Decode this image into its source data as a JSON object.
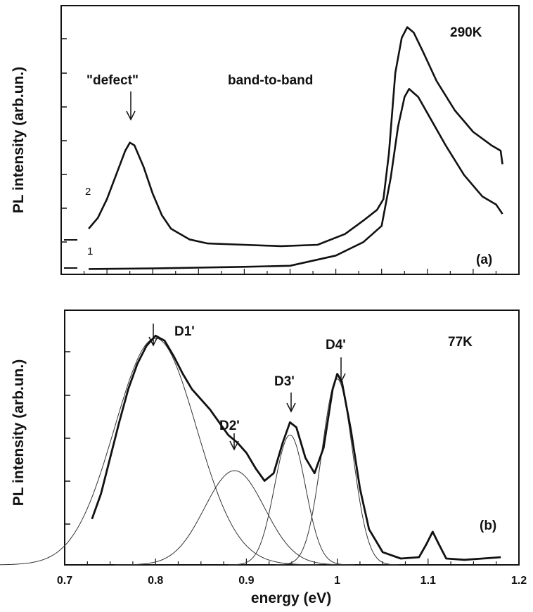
{
  "chart_data": [
    {
      "type": "line",
      "panel_label": "(a)",
      "temperature": "290K",
      "ylabel": "PL intensity (arb.un.)",
      "xlabel": "",
      "xlim": [
        0.7,
        1.2
      ],
      "ylim": [
        0,
        10
      ],
      "grid": false,
      "annotations": [
        {
          "text": "\"defect\"",
          "x": 0.775,
          "arrow": true
        },
        {
          "text": "band-to-band",
          "x": 0.91,
          "arrow": false
        }
      ],
      "series": [
        {
          "name": "2",
          "points": [
            [
              0.73,
              1.7
            ],
            [
              0.74,
              2.1
            ],
            [
              0.75,
              2.8
            ],
            [
              0.76,
              3.7
            ],
            [
              0.77,
              4.6
            ],
            [
              0.775,
              4.9
            ],
            [
              0.78,
              4.8
            ],
            [
              0.79,
              4.0
            ],
            [
              0.8,
              3.0
            ],
            [
              0.81,
              2.2
            ],
            [
              0.82,
              1.7
            ],
            [
              0.84,
              1.3
            ],
            [
              0.86,
              1.15
            ],
            [
              0.9,
              1.1
            ],
            [
              0.94,
              1.05
            ],
            [
              0.98,
              1.1
            ],
            [
              1.01,
              1.5
            ],
            [
              1.03,
              2.0
            ],
            [
              1.045,
              2.4
            ],
            [
              1.052,
              2.8
            ],
            [
              1.058,
              4.5
            ],
            [
              1.065,
              7.5
            ],
            [
              1.072,
              8.8
            ],
            [
              1.078,
              9.2
            ],
            [
              1.085,
              9.0
            ],
            [
              1.095,
              8.3
            ],
            [
              1.11,
              7.2
            ],
            [
              1.13,
              6.1
            ],
            [
              1.15,
              5.3
            ],
            [
              1.17,
              4.8
            ],
            [
              1.18,
              4.6
            ],
            [
              1.182,
              4.1
            ]
          ]
        },
        {
          "name": "1",
          "points": [
            [
              0.73,
              0.2
            ],
            [
              0.8,
              0.22
            ],
            [
              0.9,
              0.28
            ],
            [
              0.95,
              0.32
            ],
            [
              1.0,
              0.7
            ],
            [
              1.03,
              1.2
            ],
            [
              1.05,
              1.8
            ],
            [
              1.06,
              3.6
            ],
            [
              1.068,
              5.5
            ],
            [
              1.075,
              6.6
            ],
            [
              1.08,
              6.9
            ],
            [
              1.09,
              6.6
            ],
            [
              1.1,
              6.0
            ],
            [
              1.12,
              4.8
            ],
            [
              1.14,
              3.7
            ],
            [
              1.16,
              2.9
            ],
            [
              1.175,
              2.6
            ],
            [
              1.182,
              2.25
            ]
          ]
        }
      ]
    },
    {
      "type": "line",
      "panel_label": "(b)",
      "temperature": "77K",
      "ylabel": "PL intensity (arb.un.)",
      "xlabel": "energy (eV)",
      "xlim": [
        0.7,
        1.2
      ],
      "ylim": [
        0,
        10
      ],
      "grid": false,
      "x_ticks": [
        "0.7",
        "0.8",
        "0.9",
        "1",
        "1.1",
        "1.2"
      ],
      "peaks": [
        {
          "label": "D1'",
          "x": 0.8
        },
        {
          "label": "D2'",
          "x": 0.887
        },
        {
          "label": "D3'",
          "x": 0.948
        },
        {
          "label": "D4'",
          "x": 1.0
        }
      ],
      "measured": [
        [
          0.73,
          1.8
        ],
        [
          0.74,
          2.8
        ],
        [
          0.75,
          4.2
        ],
        [
          0.76,
          5.6
        ],
        [
          0.77,
          6.9
        ],
        [
          0.78,
          7.9
        ],
        [
          0.79,
          8.6
        ],
        [
          0.8,
          9.0
        ],
        [
          0.81,
          8.8
        ],
        [
          0.82,
          8.2
        ],
        [
          0.83,
          7.5
        ],
        [
          0.84,
          6.9
        ],
        [
          0.85,
          6.5
        ],
        [
          0.86,
          6.1
        ],
        [
          0.87,
          5.6
        ],
        [
          0.88,
          5.1
        ],
        [
          0.89,
          4.8
        ],
        [
          0.9,
          4.4
        ],
        [
          0.91,
          3.8
        ],
        [
          0.92,
          3.3
        ],
        [
          0.93,
          3.6
        ],
        [
          0.94,
          4.8
        ],
        [
          0.948,
          5.6
        ],
        [
          0.955,
          5.4
        ],
        [
          0.965,
          4.2
        ],
        [
          0.975,
          3.6
        ],
        [
          0.985,
          4.6
        ],
        [
          0.995,
          6.9
        ],
        [
          1.0,
          7.5
        ],
        [
          1.005,
          7.2
        ],
        [
          1.015,
          5.3
        ],
        [
          1.025,
          3.0
        ],
        [
          1.035,
          1.4
        ],
        [
          1.05,
          0.5
        ],
        [
          1.07,
          0.25
        ],
        [
          1.09,
          0.3
        ],
        [
          1.098,
          0.8
        ],
        [
          1.105,
          1.3
        ],
        [
          1.112,
          0.8
        ],
        [
          1.12,
          0.25
        ],
        [
          1.14,
          0.2
        ],
        [
          1.16,
          0.25
        ],
        [
          1.18,
          0.3
        ]
      ],
      "fits": [
        {
          "label": "D1'",
          "center": 0.8,
          "height": 8.9,
          "width": 0.045
        },
        {
          "label": "D2'",
          "center": 0.887,
          "height": 3.7,
          "width": 0.033
        },
        {
          "label": "D3'",
          "center": 0.948,
          "height": 5.1,
          "width": 0.017
        },
        {
          "label": "D4'",
          "center": 1.0,
          "height": 7.3,
          "width": 0.017
        }
      ]
    }
  ],
  "curve_labels": {
    "two": "2",
    "one": "1"
  }
}
